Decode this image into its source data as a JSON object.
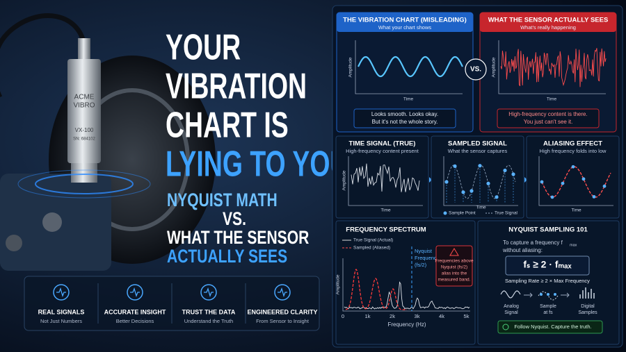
{
  "headline": {
    "lines": [
      "YOUR",
      "VIBRATION",
      "CHART IS",
      "LYING TO YOU:"
    ]
  },
  "subhead": {
    "lines": [
      "NYQUIST MATH",
      "VS.",
      "WHAT THE SENSOR",
      "ACTUALLY SEES"
    ]
  },
  "sensor": {
    "brand": [
      "ACME",
      "VIBRO"
    ],
    "model": "VX-100",
    "serial": "SN: 684102"
  },
  "features": [
    {
      "title": "REAL SIGNALS",
      "subtitle": "Not Just Numbers"
    },
    {
      "title": "ACCURATE INSIGHT",
      "subtitle": "Better Decisions"
    },
    {
      "title": "TRUST THE DATA",
      "subtitle": "Understand the Truth"
    },
    {
      "title": "ENGINEERED CLARITY",
      "subtitle": "From Sensor to Insight"
    }
  ],
  "comparison": {
    "left": {
      "title": "THE VIBRATION CHART (MISLEADING)",
      "subtitle": "What your chart shows",
      "y_label": "Amplitude",
      "x_label": "Time",
      "caption": [
        "Looks smooth. Looks okay.",
        "But it's not the whole story."
      ]
    },
    "vs": "VS.",
    "right": {
      "title": "WHAT THE SENSOR ACTUALLY SEES",
      "subtitle": "What's really happening",
      "y_label": "Amplitude",
      "x_label": "Time",
      "caption": [
        "High-frequency content is there.",
        "You just can't see it."
      ]
    }
  },
  "steps": [
    {
      "title": "TIME SIGNAL (TRUE)",
      "subtitle": "High-frequency content present",
      "y_label": "Amplitude",
      "x_label": "Time"
    },
    {
      "title": "SAMPLED SIGNAL",
      "subtitle": "What the sensor captures",
      "x_label": "Time",
      "legend": [
        "Sample Point",
        "True Signal"
      ]
    },
    {
      "title": "ALIASING EFFECT",
      "subtitle": "High frequency folds into low",
      "x_label": "Time"
    }
  ],
  "spectrum": {
    "title": "FREQUENCY SPECTRUM",
    "legend": [
      "True Signal (Actual)",
      "Sampled (Aliased)"
    ],
    "nyquist_label": [
      "Nyquist",
      "Frequency",
      "(fs/2)"
    ],
    "warning": [
      "Frequencies above",
      "Nyquist (fs/2)",
      "alias into the",
      "measured band."
    ],
    "x_ticks": [
      "0",
      "1k",
      "2k",
      "3k",
      "4k",
      "5k"
    ],
    "x_label": "Frequency (Hz)",
    "y_label": "Amplitude"
  },
  "nyquist101": {
    "title": "NYQUIST SAMPLING 101",
    "intro": [
      "To capture a frequency f",
      "max",
      "without aliasing:"
    ],
    "formula": "fₛ ≥ 2 · fₘₐₓ",
    "formula_note": "Sampling Rate ≥ 2 × Max Frequency",
    "icons": [
      [
        "Analog",
        "Signal"
      ],
      [
        "Sample",
        "at fs"
      ],
      [
        "Digital",
        "Samples"
      ]
    ],
    "footer": "Follow Nyquist. Capture the truth."
  }
}
